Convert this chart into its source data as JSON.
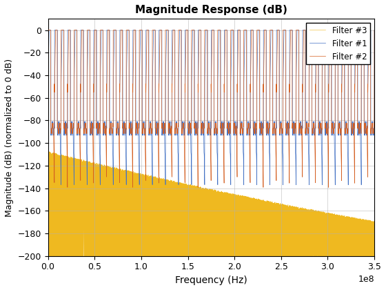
{
  "title": "Magnitude Response (dB)",
  "xlabel": "Frequency (Hz)",
  "ylabel": "Magnitude (dB) (normalized to 0 dB)",
  "xlim": [
    0,
    350000000.0
  ],
  "ylim": [
    -200,
    10
  ],
  "xticks": [
    0,
    50000000.0,
    100000000.0,
    150000000.0,
    200000000.0,
    250000000.0,
    300000000.0,
    350000000.0
  ],
  "yticks": [
    0,
    -20,
    -40,
    -60,
    -80,
    -100,
    -120,
    -140,
    -160,
    -180,
    -200
  ],
  "color_filter1": "#4472C4",
  "color_filter2": "#D45F21",
  "color_filter3": "#EFB920",
  "legend_labels": [
    "Filter #1",
    "Filter #2",
    "Filter #3"
  ],
  "fs": 350000000.0,
  "n_points": 100000,
  "background_color": "#ffffff",
  "grid_color": "#b0b0b0"
}
